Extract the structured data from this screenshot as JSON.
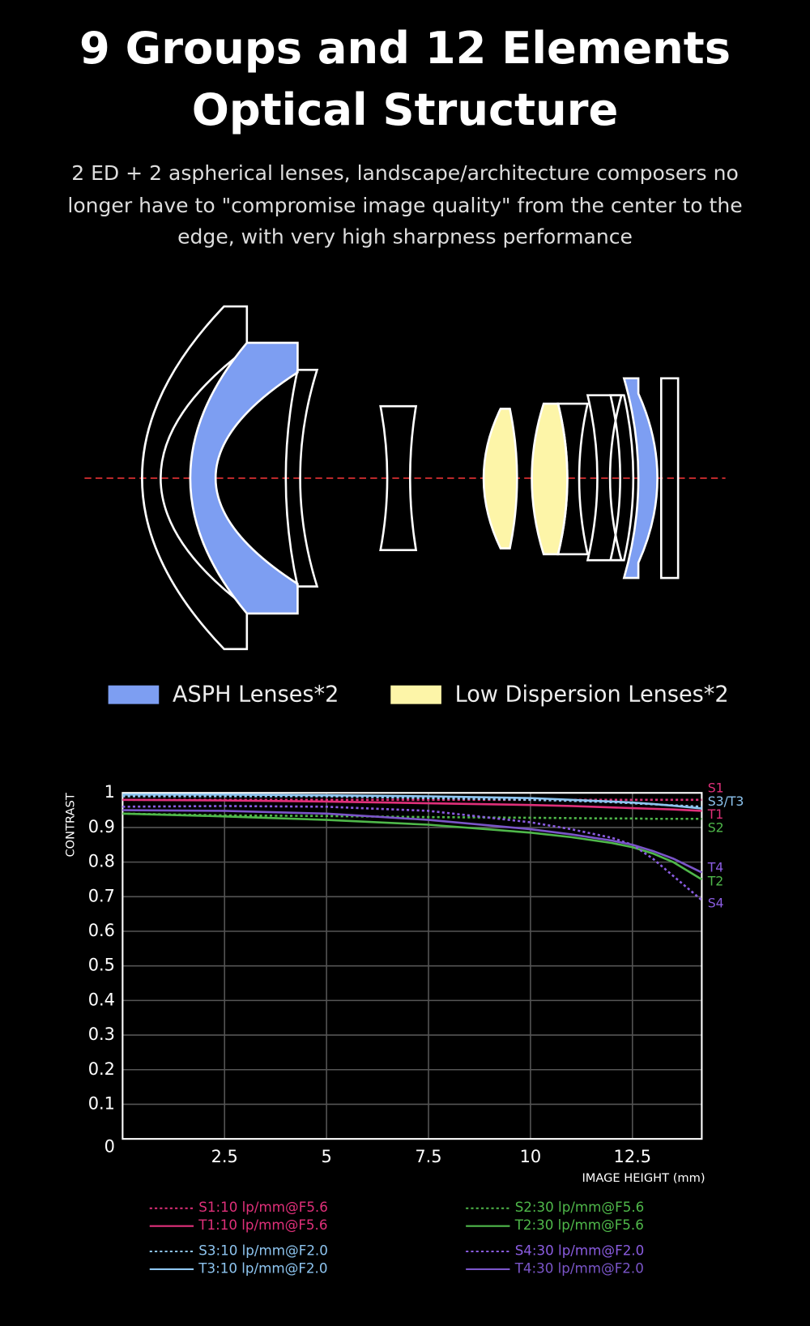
{
  "header": {
    "title": [
      "9 Groups and 12 Elements",
      "Optical Structure"
    ],
    "subtitle": [
      "2 ED + 2 aspherical lenses, landscape/architecture composers no",
      "longer have to \"compromise image quality\" from the center to the",
      "edge, with very high sharpness performance"
    ]
  },
  "lens_legend": [
    {
      "label": "ASPH Lenses*2",
      "color": "#7d9ef2"
    },
    {
      "label": "Low Dispersion Lenses*2",
      "color": "#fdf5a8"
    }
  ],
  "chart_data": {
    "type": "line",
    "y_label": "CONTRAST",
    "x_label": "IMAGE HEIGHT  (mm)",
    "xlim": [
      0,
      14.2
    ],
    "ylim": [
      0,
      1
    ],
    "xticks": [
      2.5,
      5,
      7.5,
      10,
      12.5
    ],
    "yticks": [
      0,
      0.1,
      0.2,
      0.3,
      0.4,
      0.5,
      0.6,
      0.7,
      0.8,
      0.9,
      1
    ],
    "grid": true,
    "x": [
      0,
      2.5,
      5,
      7.5,
      10,
      11,
      12,
      12.5,
      13,
      13.5,
      14.2
    ],
    "series": [
      {
        "name": "S1:10 lp/mm@F5.6",
        "color": "#e0307a",
        "style": "dotted",
        "values": [
          0.98,
          0.98,
          0.98,
          0.98,
          0.98,
          0.98,
          0.98,
          0.98,
          0.98,
          0.98,
          0.98
        ]
      },
      {
        "name": "T1:10 lp/mm@F5.6",
        "color": "#e0307a",
        "style": "solid",
        "values": [
          0.98,
          0.978,
          0.975,
          0.97,
          0.965,
          0.962,
          0.958,
          0.956,
          0.954,
          0.952,
          0.948
        ]
      },
      {
        "name": "S2:30 lp/mm@F5.6",
        "color": "#4fb84a",
        "style": "dotted",
        "values": [
          0.94,
          0.935,
          0.933,
          0.93,
          0.928,
          0.927,
          0.926,
          0.926,
          0.925,
          0.925,
          0.925
        ]
      },
      {
        "name": "T2:30 lp/mm@F5.6",
        "color": "#4fb84a",
        "style": "solid",
        "values": [
          0.94,
          0.932,
          0.922,
          0.908,
          0.885,
          0.872,
          0.855,
          0.843,
          0.825,
          0.8,
          0.75
        ]
      },
      {
        "name": "S3:10 lp/mm@F2.0",
        "color": "#8ec5f0",
        "style": "dotted",
        "values": [
          0.99,
          0.99,
          0.99,
          0.985,
          0.98,
          0.977,
          0.973,
          0.97,
          0.967,
          0.964,
          0.96
        ]
      },
      {
        "name": "T3:10 lp/mm@F2.0",
        "color": "#8ec5f0",
        "style": "solid",
        "values": [
          0.995,
          0.995,
          0.993,
          0.99,
          0.985,
          0.98,
          0.975,
          0.972,
          0.968,
          0.963,
          0.955
        ]
      },
      {
        "name": "S4:30 lp/mm@F2.0",
        "color": "#8a5ce0",
        "style": "dotted",
        "values": [
          0.96,
          0.962,
          0.96,
          0.948,
          0.915,
          0.895,
          0.87,
          0.85,
          0.81,
          0.76,
          0.69
        ]
      },
      {
        "name": "T4:30 lp/mm@F2.0",
        "color": "#7a55c8",
        "style": "solid",
        "values": [
          0.95,
          0.948,
          0.94,
          0.922,
          0.895,
          0.88,
          0.862,
          0.85,
          0.832,
          0.81,
          0.77
        ]
      }
    ],
    "end_labels": [
      {
        "text": "S1",
        "color": "#e0307a"
      },
      {
        "text": "S3/T3",
        "color": "#8ec5f0"
      },
      {
        "text": "T1",
        "color": "#e0307a"
      },
      {
        "text": "S2",
        "color": "#4fb84a"
      },
      {
        "text": "T4",
        "color": "#8a5ce0"
      },
      {
        "text": "T2",
        "color": "#4fb84a"
      },
      {
        "text": "S4",
        "color": "#8a5ce0"
      }
    ]
  }
}
